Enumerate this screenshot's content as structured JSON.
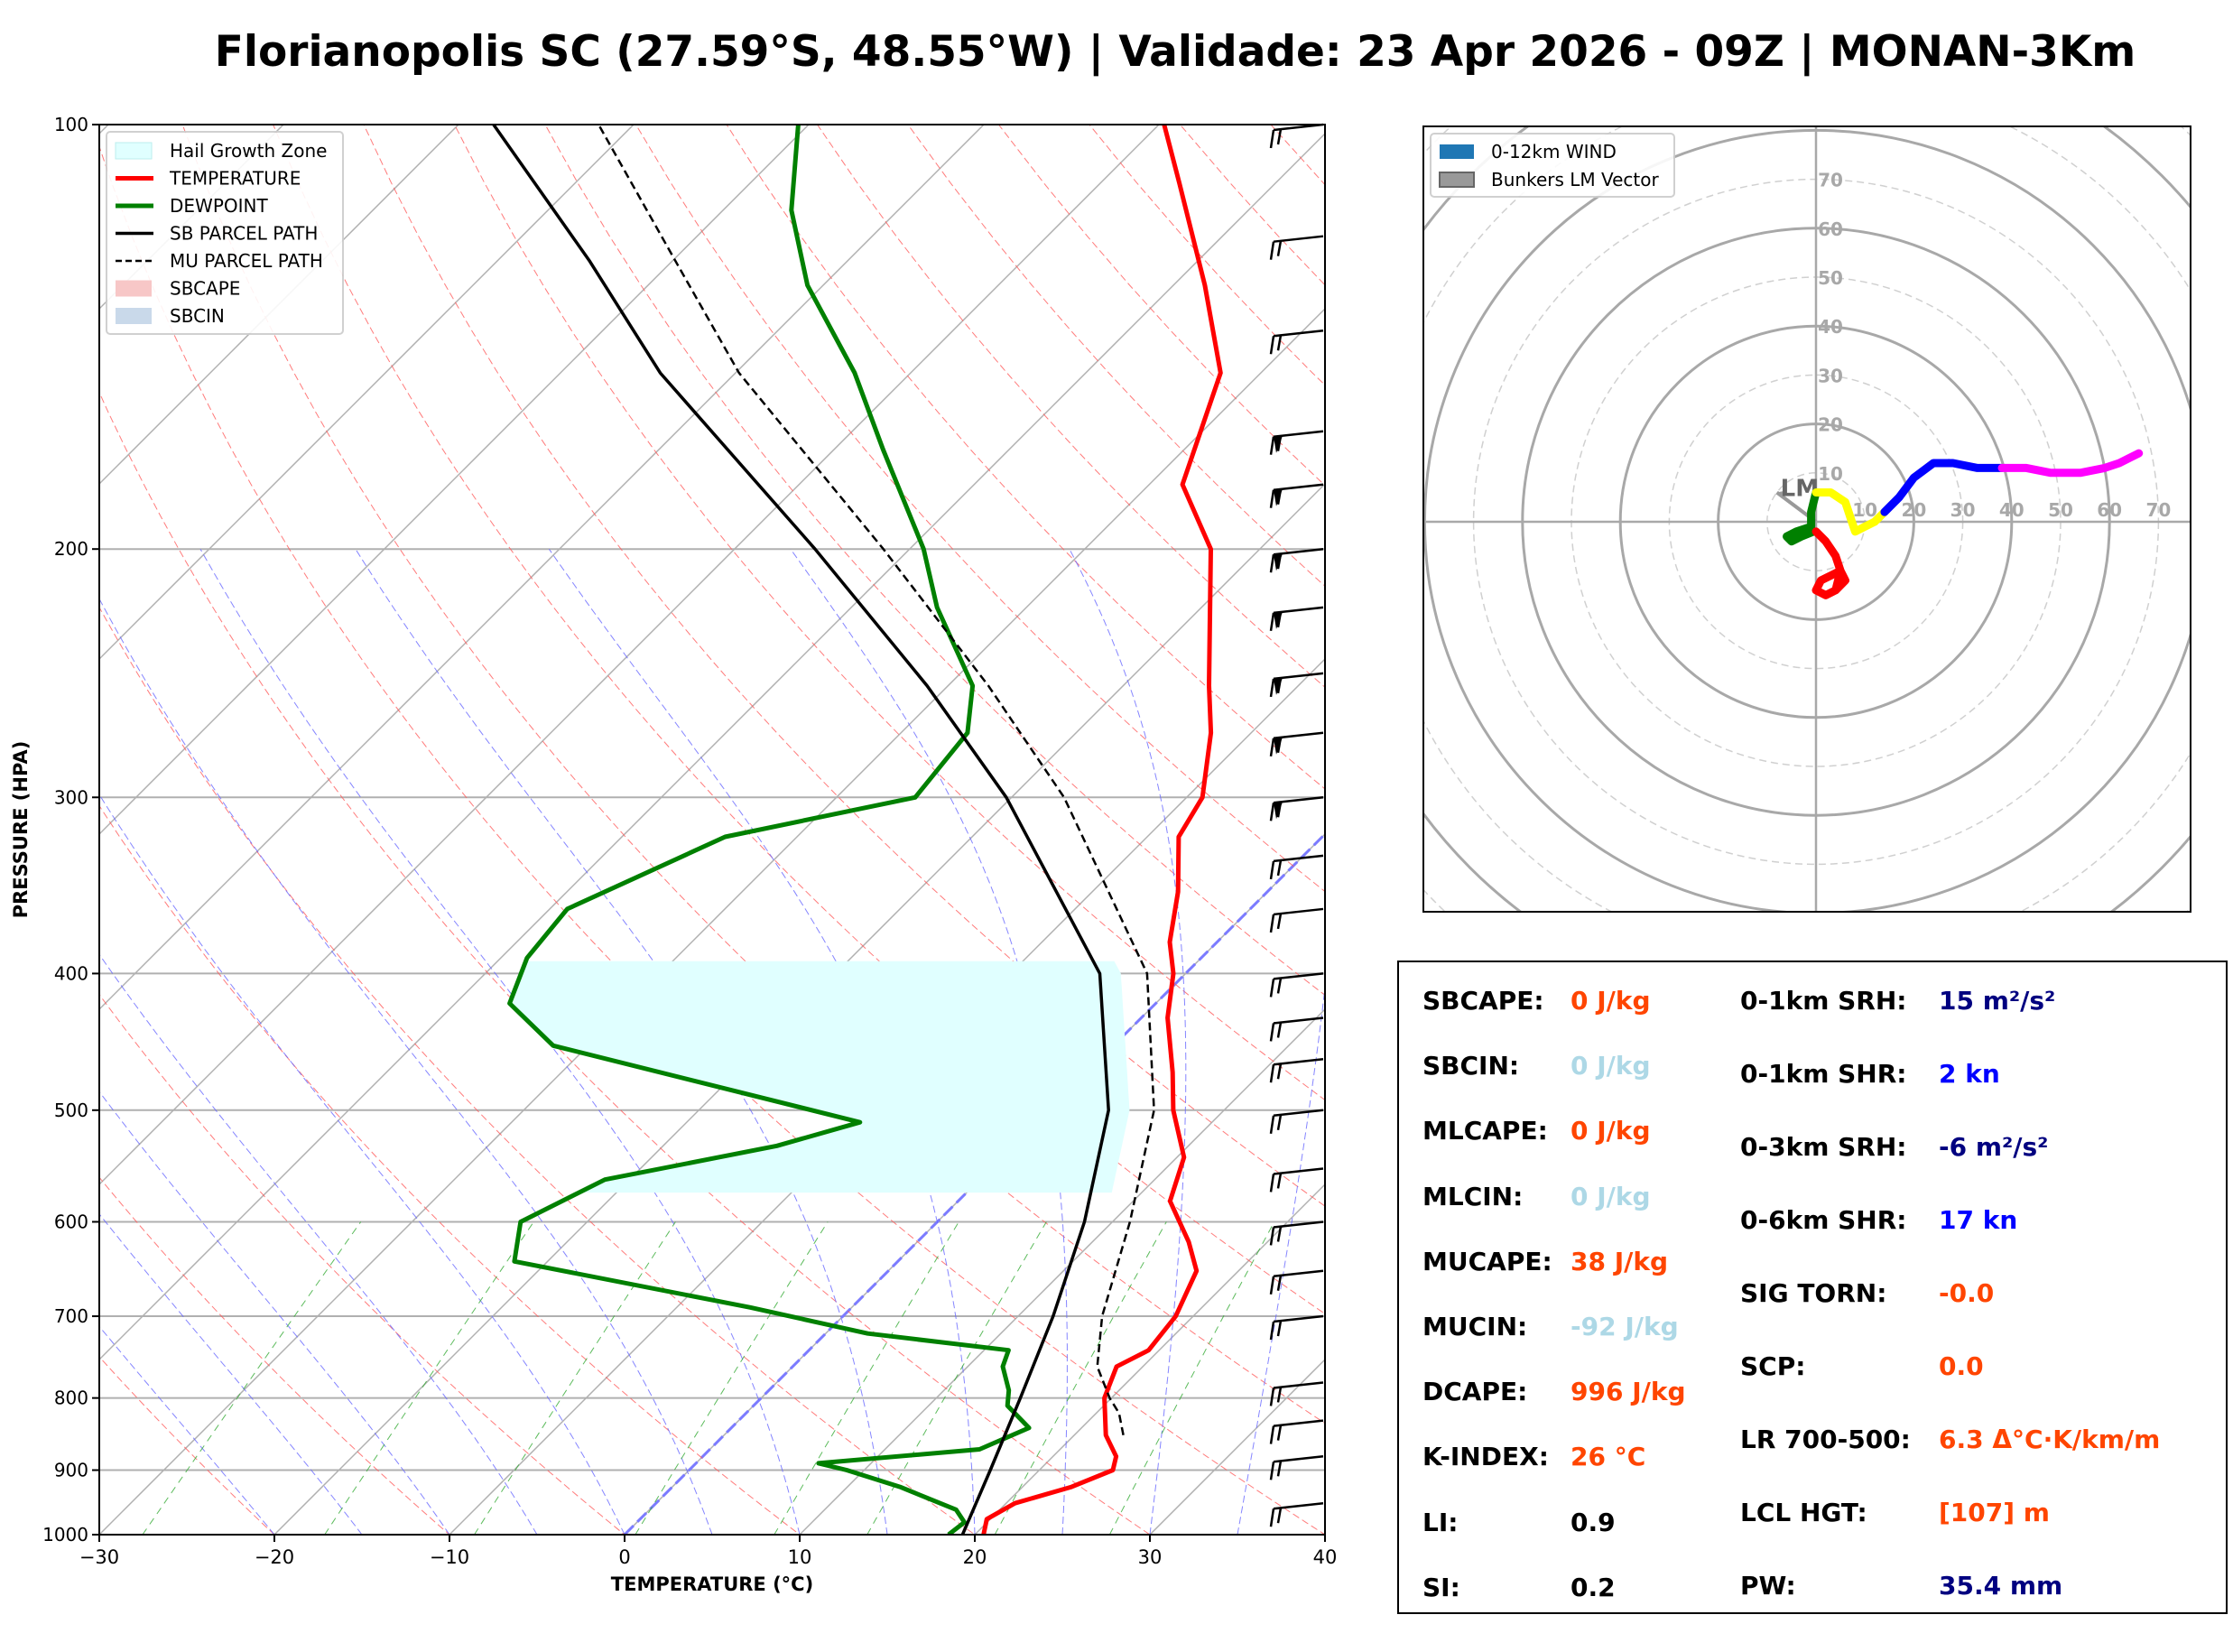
{
  "title": "Florianopolis SC (27.59°S, 48.55°W) | Validade: 23 Apr 2026 - 09Z | MONAN-3Km",
  "chart_data": [
    {
      "type": "line",
      "name": "skew-t",
      "xlabel": "TEMPERATURE (°C)",
      "ylabel": "PRESSURE (HPA)",
      "xlim": [
        -30,
        40
      ],
      "ylim": [
        1000,
        100
      ],
      "log_y": true,
      "skew": true,
      "grid": true,
      "legend_position": "top-left",
      "x_ticks": [
        "−30",
        "−20",
        "−10",
        "0",
        "10",
        "20",
        "30",
        "40"
      ],
      "y_ticks": [
        "100",
        "200",
        "300",
        "400",
        "500",
        "600",
        "700",
        "800",
        "900",
        "1000"
      ],
      "legend": [
        {
          "label": "Hail Growth Zone",
          "color": "#e0ffff"
        },
        {
          "label": "TEMPERATURE",
          "color": "#ff0000"
        },
        {
          "label": "DEWPOINT",
          "color": "#008000"
        },
        {
          "label": "SB PARCEL PATH",
          "color": "#000000"
        },
        {
          "label": "MU PARCEL PATH",
          "color": "#000000"
        },
        {
          "label": "SBCAPE",
          "color": "#f7c7c7"
        },
        {
          "label": "SBCIN",
          "color": "#c9d9ea"
        }
      ],
      "series": [
        {
          "name": "TEMPERATURE",
          "color": "#ff0000",
          "points": [
            [
              1000,
              20.5
            ],
            [
              975,
              19.8
            ],
            [
              950,
              20.5
            ],
            [
              925,
              22.8
            ],
            [
              900,
              24.2
            ],
            [
              880,
              23.6
            ],
            [
              850,
              21.8
            ],
            [
              800,
              19.6
            ],
            [
              760,
              18.5
            ],
            [
              740,
              19.4
            ],
            [
              700,
              19.0
            ],
            [
              650,
              17.6
            ],
            [
              620,
              15.5
            ],
            [
              580,
              12.1
            ],
            [
              540,
              10.4
            ],
            [
              500,
              7.1
            ],
            [
              470,
              4.9
            ],
            [
              430,
              1.5
            ],
            [
              400,
              -0.7
            ],
            [
              380,
              -2.7
            ],
            [
              350,
              -5.1
            ],
            [
              320,
              -8.2
            ],
            [
              300,
              -9.1
            ],
            [
              270,
              -12.3
            ],
            [
              250,
              -15.1
            ],
            [
              200,
              -22.8
            ],
            [
              180,
              -28.1
            ],
            [
              150,
              -32.3
            ],
            [
              130,
              -38.2
            ],
            [
              110,
              -45.5
            ],
            [
              100,
              -49.7
            ]
          ]
        },
        {
          "name": "DEWPOINT",
          "color": "#008000",
          "points": [
            [
              1000,
              18.5
            ],
            [
              980,
              18.7
            ],
            [
              960,
              17.5
            ],
            [
              925,
              13.0
            ],
            [
              900,
              9.0
            ],
            [
              890,
              7.0
            ],
            [
              870,
              15.4
            ],
            [
              840,
              17.0
            ],
            [
              810,
              14.5
            ],
            [
              790,
              13.7
            ],
            [
              760,
              12.0
            ],
            [
              740,
              11.4
            ],
            [
              720,
              2.4
            ],
            [
              690,
              -5.8
            ],
            [
              640,
              -21.9
            ],
            [
              600,
              -23.8
            ],
            [
              560,
              -21.4
            ],
            [
              530,
              -13.5
            ],
            [
              510,
              -10.1
            ],
            [
              450,
              -32.0
            ],
            [
              420,
              -36.9
            ],
            [
              390,
              -38.5
            ],
            [
              360,
              -39.0
            ],
            [
              320,
              -34.1
            ],
            [
              300,
              -25.5
            ],
            [
              270,
              -26.2
            ],
            [
              250,
              -28.6
            ],
            [
              220,
              -35.1
            ],
            [
              200,
              -39.2
            ],
            [
              170,
              -47.2
            ],
            [
              150,
              -53.2
            ],
            [
              130,
              -60.9
            ],
            [
              115,
              -66.1
            ],
            [
              100,
              -70.6
            ]
          ]
        },
        {
          "name": "SB PARCEL PATH",
          "color": "#000000",
          "points": [
            [
              1000,
              19.3
            ],
            [
              900,
              17.2
            ],
            [
              800,
              14.8
            ],
            [
              700,
              12.0
            ],
            [
              600,
              8.4
            ],
            [
              500,
              3.4
            ],
            [
              400,
              -4.9
            ],
            [
              300,
              -20.3
            ],
            [
              250,
              -31.2
            ],
            [
              200,
              -45.4
            ],
            [
              150,
              -64.3
            ],
            [
              125,
              -74.7
            ],
            [
              100,
              -88.0
            ]
          ]
        },
        {
          "name": "MU PARCEL PATH",
          "color": "#000000",
          "points": [
            [
              850,
              22.8
            ],
            [
              820,
              21.3
            ],
            [
              800,
              19.9
            ],
            [
              760,
              17.4
            ],
            [
              700,
              14.8
            ],
            [
              600,
              11.0
            ],
            [
              500,
              6.0
            ],
            [
              400,
              -2.2
            ],
            [
              300,
              -17.0
            ],
            [
              250,
              -27.7
            ],
            [
              200,
              -41.5
            ],
            [
              150,
              -59.8
            ],
            [
              125,
              -69.8
            ],
            [
              100,
              -82.0
            ]
          ]
        }
      ],
      "hail_growth_zone": {
        "p_bottom": 572,
        "p_top": 392
      }
    },
    {
      "type": "line",
      "name": "hodograph",
      "legend_position": "top-left",
      "legend": [
        {
          "label": "0-12km WIND",
          "color": "#1f77b4"
        },
        {
          "label": "Bunkers LM Vector",
          "color": "#999999"
        }
      ],
      "ring_labels": [
        "10",
        "20",
        "30",
        "40",
        "50",
        "60",
        "70"
      ],
      "lm_label": "LM",
      "lm_vector": [
        -8,
        6
      ],
      "segments": [
        {
          "color": "#008000",
          "points": [
            [
              -0.5,
              -2
            ],
            [
              -3,
              -3
            ],
            [
              -5,
              -4
            ],
            [
              -6,
              -3
            ],
            [
              -4,
              -2
            ],
            [
              -1,
              -1
            ],
            [
              -1,
              2
            ],
            [
              -0.5,
              4
            ],
            [
              0,
              6
            ]
          ]
        },
        {
          "color": "#ff0000",
          "points": [
            [
              0,
              -2
            ],
            [
              2,
              -4
            ],
            [
              4,
              -7
            ],
            [
              5,
              -10
            ],
            [
              4,
              -14
            ],
            [
              2,
              -15
            ],
            [
              0,
              -14
            ],
            [
              1,
              -12
            ],
            [
              3,
              -11
            ],
            [
              5,
              -10
            ],
            [
              6,
              -12
            ],
            [
              4,
              -14
            ]
          ]
        },
        {
          "color": "#ffff00",
          "points": [
            [
              0,
              6
            ],
            [
              3,
              6
            ],
            [
              6,
              4
            ],
            [
              7,
              1
            ],
            [
              8,
              -2
            ],
            [
              10,
              -1
            ],
            [
              12,
              0
            ],
            [
              14,
              2
            ]
          ]
        },
        {
          "color": "#0000ff",
          "points": [
            [
              14,
              2
            ],
            [
              17,
              5
            ],
            [
              20,
              9
            ],
            [
              24,
              12
            ],
            [
              28,
              12
            ],
            [
              33,
              11
            ],
            [
              38,
              11
            ]
          ]
        },
        {
          "color": "#ff00ff",
          "points": [
            [
              38,
              11
            ],
            [
              43,
              11
            ],
            [
              48,
              10
            ],
            [
              54,
              10
            ],
            [
              59,
              11
            ],
            [
              62,
              12
            ],
            [
              64,
              13
            ],
            [
              66,
              14
            ]
          ]
        }
      ]
    }
  ],
  "indices": {
    "left": [
      {
        "label": "SBCAPE:",
        "value": "0 J/kg",
        "color": "#ff4500"
      },
      {
        "label": "SBCIN:",
        "value": "0 J/kg",
        "color": "#add8e6"
      },
      {
        "label": "MLCAPE:",
        "value": "0 J/kg",
        "color": "#ff4500"
      },
      {
        "label": "MLCIN:",
        "value": "0 J/kg",
        "color": "#add8e6"
      },
      {
        "label": "MUCAPE:",
        "value": "38 J/kg",
        "color": "#ff4500"
      },
      {
        "label": "MUCIN:",
        "value": "-92 J/kg",
        "color": "#add8e6"
      },
      {
        "label": "DCAPE:",
        "value": "996 J/kg",
        "color": "#ff4500"
      },
      {
        "label": "K-INDEX:",
        "value": "26 °C",
        "color": "#ff4500"
      },
      {
        "label": "LI:",
        "value": "0.9",
        "color": "#000000"
      },
      {
        "label": "SI:",
        "value": "0.2",
        "color": "#000000"
      }
    ],
    "right": [
      {
        "label": "0-1km SRH:",
        "value": "15 m²/s²",
        "color": "#000080"
      },
      {
        "label": "0-1km SHR:",
        "value": "2 kn",
        "color": "#0000ff"
      },
      {
        "label": "0-3km SRH:",
        "value": "-6 m²/s²",
        "color": "#000080"
      },
      {
        "label": "0-6km SHR:",
        "value": "17 kn",
        "color": "#0000ff"
      },
      {
        "label": "SIG TORN:",
        "value": "-0.0",
        "color": "#ff4500"
      },
      {
        "label": "SCP:",
        "value": "0.0",
        "color": "#ff4500"
      },
      {
        "label": "LR 700-500:",
        "value": "6.3 Δ°C·K/km/m",
        "color": "#ff4500"
      },
      {
        "label": "LCL HGT:",
        "value": "[107] m",
        "color": "#ff4500"
      },
      {
        "label": "PW:",
        "value": "35.4 mm",
        "color": "#000080"
      }
    ]
  }
}
